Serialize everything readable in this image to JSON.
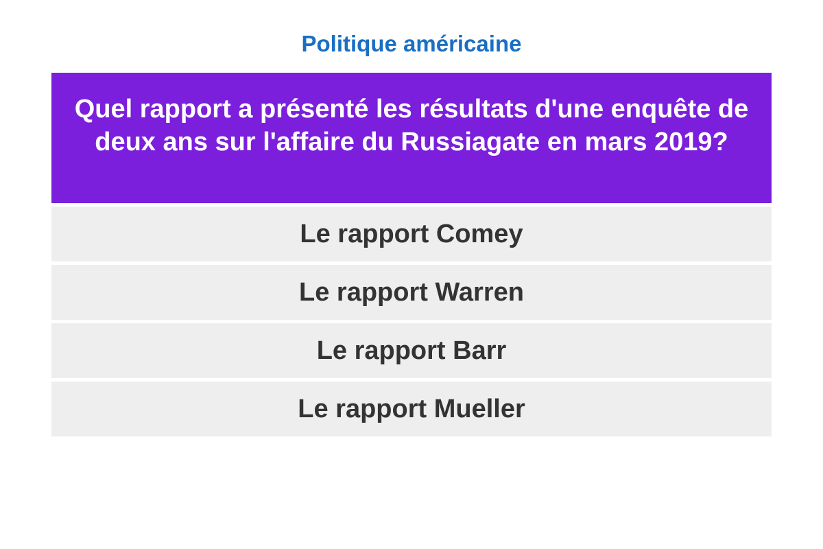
{
  "category": "Politique américaine",
  "question": "Quel rapport a présenté les résultats d'une enquête de deux ans sur l'affaire du Russiagate en mars 2019?",
  "answers": [
    "Le rapport Comey",
    "Le rapport Warren",
    "Le rapport Barr",
    "Le rapport Mueller"
  ],
  "colors": {
    "category": "#1a6fc4",
    "question_bg": "#7c1fdc",
    "answer_bg": "#eeeeee",
    "answer_text": "#333333"
  }
}
